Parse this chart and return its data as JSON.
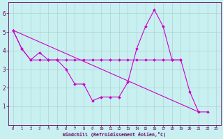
{
  "xlabel": "Windchill (Refroidissement éolien,°C)",
  "bg_color": "#c8f0f0",
  "grid_color": "#aacccc",
  "line_color": "#cc00cc",
  "spine_color": "#660066",
  "tick_color": "#660066",
  "xlim": [
    -0.5,
    23.5
  ],
  "ylim": [
    0,
    6.6
  ],
  "xticks": [
    0,
    1,
    2,
    3,
    4,
    5,
    6,
    7,
    8,
    9,
    10,
    11,
    12,
    13,
    14,
    15,
    16,
    17,
    18,
    19,
    20,
    21,
    22,
    23
  ],
  "yticks": [
    1,
    2,
    3,
    4,
    5,
    6
  ],
  "lines": [
    {
      "x": [
        0,
        1,
        2,
        3,
        4,
        5,
        6,
        7,
        8,
        9,
        10,
        11,
        12,
        13,
        14,
        15,
        16,
        17,
        18,
        19,
        20,
        21,
        22
      ],
      "y": [
        5.1,
        4.1,
        3.5,
        3.9,
        3.5,
        3.5,
        3.0,
        2.2,
        2.2,
        1.3,
        1.5,
        1.5,
        1.5,
        2.3,
        4.1,
        5.3,
        6.2,
        5.3,
        3.5,
        3.5,
        1.8,
        0.7,
        0.7
      ]
    },
    {
      "x": [
        0,
        21
      ],
      "y": [
        5.1,
        0.7
      ]
    },
    {
      "x": [
        0,
        1,
        2,
        3,
        4,
        5,
        6,
        7,
        8,
        9,
        10,
        11,
        12,
        13,
        14,
        15,
        16,
        17,
        18,
        19
      ],
      "y": [
        5.1,
        4.1,
        3.5,
        3.5,
        3.5,
        3.5,
        3.5,
        3.5,
        3.5,
        3.5,
        3.5,
        3.5,
        3.5,
        3.5,
        3.5,
        3.5,
        3.5,
        3.5,
        3.5,
        3.5
      ]
    }
  ]
}
